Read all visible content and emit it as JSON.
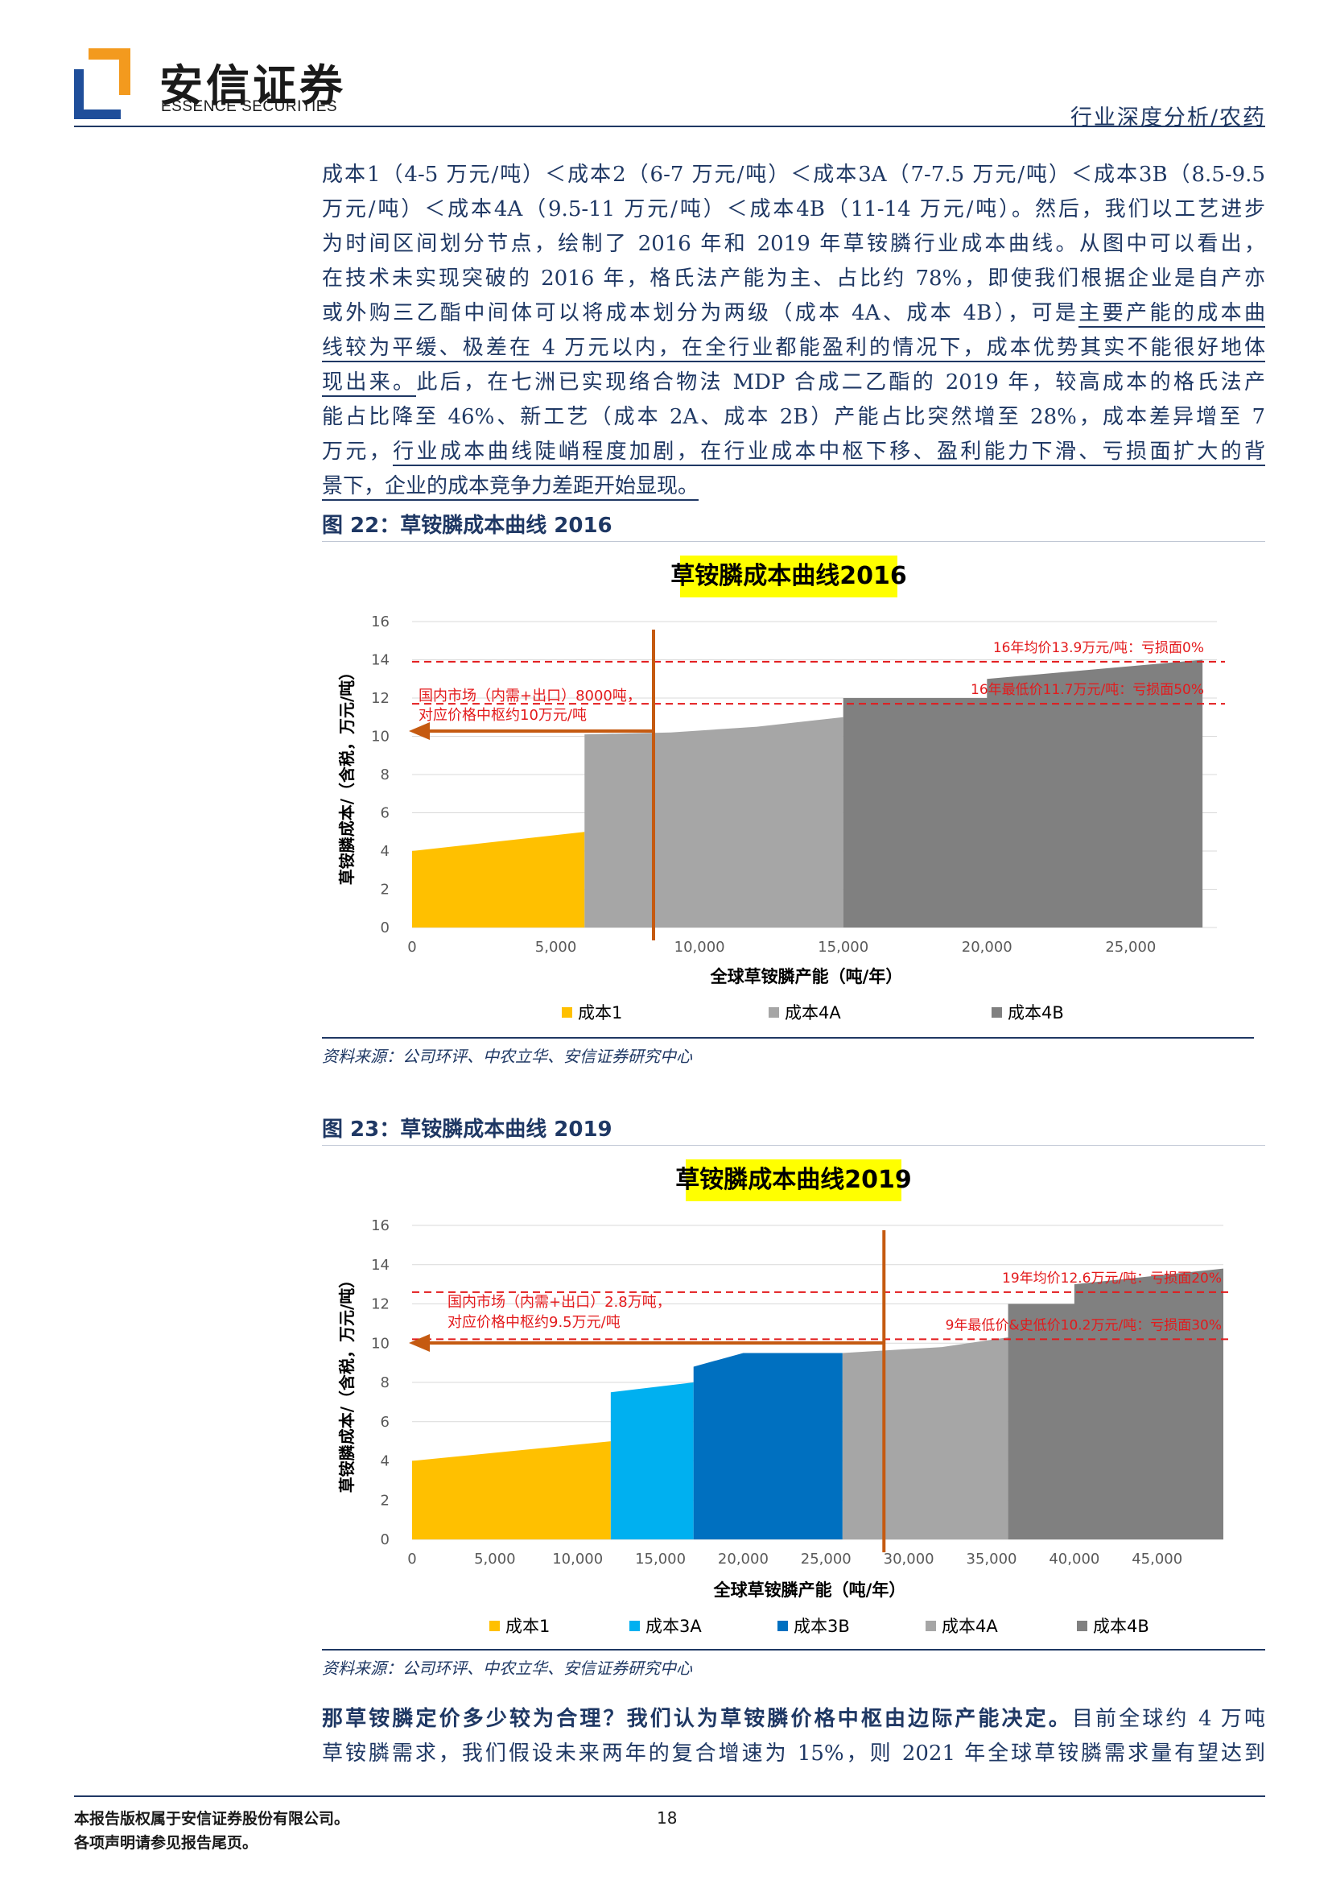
{
  "header": {
    "brand_cn": "安信证券",
    "brand_en": "ESSENCE SECURITIES",
    "report_type": "行业深度分析/农药"
  },
  "intro_lines": [
    "成本1（4-5 万元/吨）＜成本2（6-7 万元/吨）＜成本3A（7-7.5 万元/吨）＜成本3B（8.5-9.5",
    "万元/吨）＜成本4A（9.5-11 万元/吨）＜成本4B（11-14 万元/吨）。然后，我们以工艺进步",
    "为时间区间划分节点，绘制了 2016 年和 2019 年草铵膦行业成本曲线。从图中可以看出，",
    "在技术未实现突破的 2016 年，格氏法产能为主、占比约 78%，即使我们根据企业是自产亦"
  ],
  "intro_line5_pre": "或外购三乙酯中间体可以将成本划分为两级（成本 4A、成本 4B），可是",
  "intro_line5_ul": "主要产能的成本曲",
  "intro_line6_ul": "线较为平缓、极差在 4 万元以内，在全行业都能盈利的情况下，成本优势其实不能很好地体",
  "intro_line7_ul": "现出来。",
  "intro_line7_post": "此后，在七洲已实现络合物法 MDP 合成二乙酯的 2019 年，较高成本的格氏法产",
  "intro_line8": "能占比降至 46%、新工艺（成本 2A、成本 2B）产能占比突然增至 28%，成本差异增至 7",
  "intro_line9_pre": "万元，",
  "intro_line9_ul": "行业成本曲线陡峭程度加剧，在行业成本中枢下移、盈利能力下滑、亏损面扩大的背",
  "intro_line10_ul": "景下，企业的成本竞争力差距开始显现。",
  "figure22": {
    "caption": "图 22：草铵膦成本曲线 2016",
    "source": "资料来源：公司环评、中农立华、安信证券研究中心"
  },
  "figure23": {
    "caption": "图 23：草铵膦成本曲线 2019",
    "source": "资料来源：公司环评、中农立华、安信证券研究中心"
  },
  "chart_data": [
    {
      "type": "area",
      "title": "草铵膦成本曲线2016",
      "xlabel": "全球草铵膦产能（吨/年）",
      "ylabel": "草铵膦成本/（含税，万元/吨）",
      "xlim": [
        0,
        28000
      ],
      "ylim": [
        0,
        16
      ],
      "x_ticks": [
        0,
        5000,
        10000,
        15000,
        20000,
        25000
      ],
      "x_tick_labels": [
        "0",
        "5,000",
        "10,000",
        "15,000",
        "20,000",
        "25,000"
      ],
      "y_ticks": [
        0,
        2,
        4,
        6,
        8,
        10,
        12,
        14,
        16
      ],
      "grid": true,
      "legend_position": "bottom",
      "series": [
        {
          "name": "成本1",
          "color": "#FFC000",
          "points": [
            [
              0,
              4.0
            ],
            [
              6000,
              5.0
            ]
          ]
        },
        {
          "name": "成本4A",
          "color": "#A6A6A6",
          "points": [
            [
              6000,
              10.1
            ],
            [
              9000,
              10.2
            ],
            [
              12000,
              10.5
            ],
            [
              15000,
              11.0
            ]
          ]
        },
        {
          "name": "成本4B",
          "color": "#808080",
          "points": [
            [
              15000,
              12.0
            ],
            [
              20000,
              12.0
            ],
            [
              20001,
              13.0
            ],
            [
              27500,
              14.0
            ]
          ]
        }
      ],
      "reference_lines": [
        {
          "y": 13.9,
          "label": "16年均价13.9万元/吨：亏损面0%"
        },
        {
          "y": 11.7,
          "label": "16年最低价11.7万元/吨：亏损面50%"
        }
      ],
      "demand_line": {
        "x": 8400
      },
      "annotation": [
        "国内市场（内需+出口）8000吨，",
        "对应价格中枢约10万元/吨"
      ]
    },
    {
      "type": "area",
      "title": "草铵膦成本曲线2019",
      "xlabel": "全球草铵膦产能（吨/年）",
      "ylabel": "草铵膦成本/（含税，万元/吨）",
      "xlim": [
        0,
        49000
      ],
      "ylim": [
        0,
        16
      ],
      "x_ticks": [
        0,
        5000,
        10000,
        15000,
        20000,
        25000,
        30000,
        35000,
        40000,
        45000
      ],
      "x_tick_labels": [
        "0",
        "5,000",
        "10,000",
        "15,000",
        "20,000",
        "25,000",
        "30,000",
        "35,000",
        "40,000",
        "45,000"
      ],
      "y_ticks": [
        0,
        2,
        4,
        6,
        8,
        10,
        12,
        14,
        16
      ],
      "grid": true,
      "legend_position": "bottom",
      "series": [
        {
          "name": "成本1",
          "color": "#FFC000",
          "points": [
            [
              0,
              4.0
            ],
            [
              12000,
              5.0
            ]
          ]
        },
        {
          "name": "成本3A",
          "color": "#00B0F0",
          "points": [
            [
              12000,
              7.5
            ],
            [
              17000,
              8.0
            ]
          ]
        },
        {
          "name": "成本3B",
          "color": "#0070C0",
          "points": [
            [
              17000,
              8.8
            ],
            [
              20000,
              9.5
            ],
            [
              26000,
              9.5
            ]
          ]
        },
        {
          "name": "成本4A",
          "color": "#A6A6A6",
          "points": [
            [
              26000,
              9.5
            ],
            [
              32000,
              9.8
            ],
            [
              36000,
              10.3
            ]
          ]
        },
        {
          "name": "成本4B",
          "color": "#808080",
          "points": [
            [
              36000,
              12.0
            ],
            [
              40000,
              12.0
            ],
            [
              40001,
              13.0
            ],
            [
              49000,
              13.8
            ]
          ]
        }
      ],
      "reference_lines": [
        {
          "y": 12.6,
          "label": "19年均价12.6万元/吨：亏损面20%"
        },
        {
          "y": 10.2,
          "label": "9年最低价&史低价10.2万元/吨：亏损面30%"
        }
      ],
      "demand_line": {
        "x": 28500
      },
      "annotation": [
        "国内市场（内需+出口）2.8万吨，",
        "对应价格中枢约9.5万元/吨"
      ]
    }
  ],
  "outro": {
    "bold": "那草铵膦定价多少较为合理？我们认为草铵膦价格中枢由边际产能决定。",
    "line1_rest": "目前全球约 4 万吨",
    "line2": "草铵膦需求，我们假设未来两年的复合增速为 15%，则 2021 年全球草铵膦需求量有望达到"
  },
  "footer": {
    "line1": "本报告版权属于安信证券股份有限公司。",
    "line2": "各项声明请参见报告尾页。",
    "page": "18"
  }
}
